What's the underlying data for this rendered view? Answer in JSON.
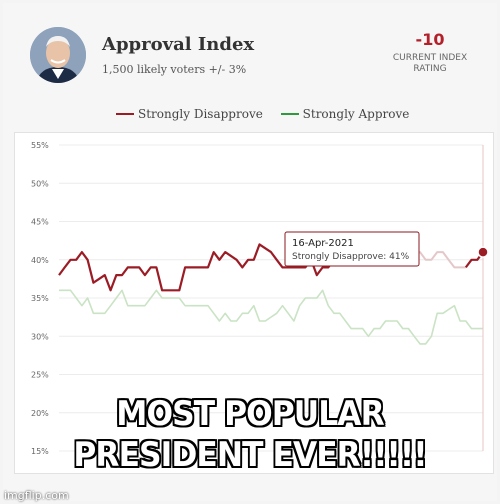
{
  "header": {
    "title": "Approval Index",
    "subtitle": "1,500 likely voters +/- 3%",
    "rating_value": "-10",
    "rating_label_line1": "CURRENT INDEX",
    "rating_label_line2": "RATING"
  },
  "colors": {
    "disapprove": "#9b1c25",
    "approve": "#2e9a3d",
    "approve_faded": "#c9e3c4",
    "disapprove_faded": "#e4c7c9",
    "tooltip_border": "#8b1a22"
  },
  "tooltip": {
    "date": "16-Apr-2021",
    "text": "Strongly Disapprove: 41%"
  },
  "meme": {
    "line1": "MOST POPULAR",
    "line2": "PRESIDENT EVER!!!!!"
  },
  "watermark": "imgflip.com",
  "chart_data": {
    "type": "line",
    "title": "Approval Index",
    "xlabel": "",
    "ylabel": "",
    "ylim": [
      15,
      55
    ],
    "ytick_labels": [
      "55%",
      "50%",
      "45%",
      "40%",
      "35%",
      "30%",
      "25%",
      "20%",
      "15%"
    ],
    "yticks": [
      55,
      50,
      45,
      40,
      35,
      30,
      25,
      20,
      15
    ],
    "grid": "horizontal",
    "legend_position": "top",
    "series": [
      {
        "name": "Strongly Disapprove",
        "color_key": "disapprove",
        "values": [
          38,
          39,
          40,
          40,
          41,
          40,
          37,
          37.5,
          38,
          36,
          38,
          38,
          39,
          39,
          39,
          38,
          39,
          39,
          36,
          36,
          36,
          36,
          39,
          39,
          39,
          39,
          39,
          41,
          40,
          41,
          40.5,
          40,
          39,
          40,
          40,
          42,
          41.5,
          41,
          40,
          39,
          39,
          39,
          39,
          39,
          40,
          38,
          39,
          39,
          40,
          41,
          42,
          41,
          42,
          42,
          43,
          42,
          41,
          41,
          42,
          42,
          41,
          42,
          41,
          41,
          40,
          40,
          41,
          41,
          40,
          39,
          39,
          39,
          40,
          40,
          41
        ]
      },
      {
        "name": "Strongly Approve",
        "color_key": "approve",
        "values": [
          36,
          36,
          36,
          35,
          34,
          35,
          33,
          33,
          33,
          34,
          35,
          36,
          34,
          34,
          34,
          34,
          35,
          36,
          35,
          35,
          35,
          35,
          34,
          34,
          34,
          34,
          34,
          33,
          32,
          33,
          32,
          32,
          33,
          33,
          34,
          32,
          32,
          32.5,
          33,
          34,
          33,
          32,
          34,
          35,
          35,
          35,
          36,
          34,
          33,
          33,
          32,
          31,
          31,
          31,
          30,
          31,
          31,
          32,
          32,
          32,
          31,
          31,
          30,
          29,
          29,
          30,
          33,
          33,
          33.5,
          34,
          32,
          32,
          31,
          31,
          31
        ]
      }
    ],
    "highlight_index": 74
  }
}
